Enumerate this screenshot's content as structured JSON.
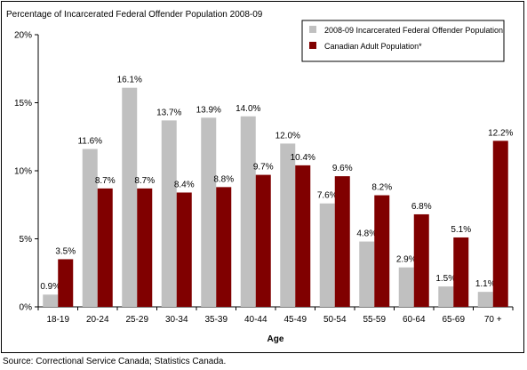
{
  "chart_data": {
    "type": "bar",
    "title": "Percentage of Incarcerated Federal Offender Population 2008-09",
    "xlabel": "Age",
    "ylabel": "",
    "ylim": [
      0,
      20
    ],
    "yticks": [
      "0%",
      "5%",
      "10%",
      "15%",
      "20%"
    ],
    "ytick_values": [
      0,
      5,
      10,
      15,
      20
    ],
    "grid": false,
    "legend_position": "top-right",
    "categories": [
      "18-19",
      "20-24",
      "25-29",
      "30-34",
      "35-39",
      "40-44",
      "45-49",
      "50-54",
      "55-59",
      "60-64",
      "65-69",
      "70 +"
    ],
    "series": [
      {
        "name": "2008-09 Incarcerated Federal Offender Population",
        "color": "#c0c0c0",
        "values": [
          0.9,
          11.6,
          16.1,
          13.7,
          13.9,
          14.0,
          12.0,
          7.6,
          4.8,
          2.9,
          1.5,
          1.1
        ],
        "labels": [
          "0.9%",
          "11.6%",
          "16.1%",
          "13.7%",
          "13.9%",
          "14.0%",
          "12.0%",
          "7.6%",
          "4.8%",
          "2.9%",
          "1.5%",
          "1.1%"
        ]
      },
      {
        "name": "Canadian Adult Population*",
        "color": "#800000",
        "values": [
          3.5,
          8.7,
          8.7,
          8.4,
          8.8,
          9.7,
          10.4,
          9.6,
          8.2,
          6.8,
          5.1,
          12.2
        ],
        "labels": [
          "3.5%",
          "8.7%",
          "8.7%",
          "8.4%",
          "8.8%",
          "9.7%",
          "10.4%",
          "9.6%",
          "8.2%",
          "6.8%",
          "5.1%",
          "12.2%"
        ]
      }
    ]
  },
  "source": "Source:  Correctional Service Canada; Statistics Canada."
}
